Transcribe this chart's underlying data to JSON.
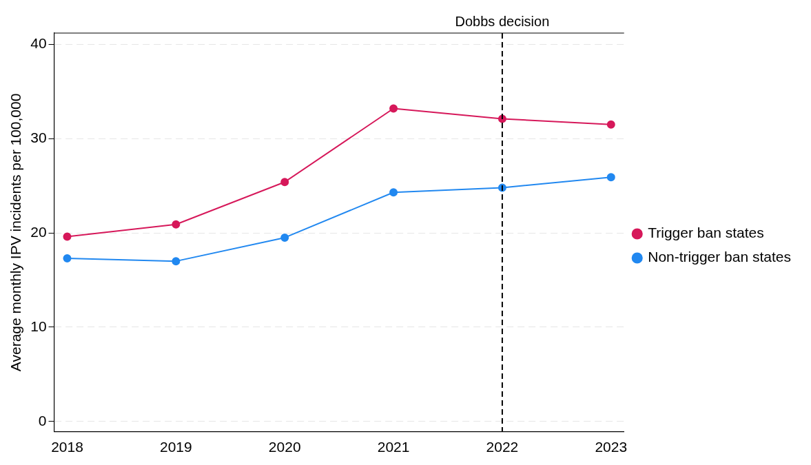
{
  "chart_data": {
    "type": "line",
    "ylabel": "Average monthly IPV incidents per 100,000",
    "x": [
      2018,
      2019,
      2020,
      2021,
      2022,
      2023
    ],
    "xlim": [
      2017.88,
      2023.12
    ],
    "xticks": [
      2018,
      2019,
      2020,
      2021,
      2022,
      2023
    ],
    "ylim": [
      -1.1,
      41.2
    ],
    "yticks": [
      0,
      10,
      20,
      30,
      40
    ],
    "series": [
      {
        "name": "Trigger ban states",
        "color": "#d6185a",
        "values": [
          19.6,
          20.9,
          25.4,
          33.2,
          32.1,
          31.5
        ]
      },
      {
        "name": "Non-trigger ban states",
        "color": "#2188f0",
        "values": [
          17.3,
          17.0,
          19.5,
          24.3,
          24.8,
          25.9
        ]
      }
    ],
    "ref_lines": [
      {
        "axis": "x",
        "value": 2022,
        "label": "Dobbs decision",
        "color": "#000000",
        "line_style": "dashed"
      }
    ],
    "grid": "y",
    "legend": "right",
    "marker": "circle",
    "line_style": "solid"
  }
}
